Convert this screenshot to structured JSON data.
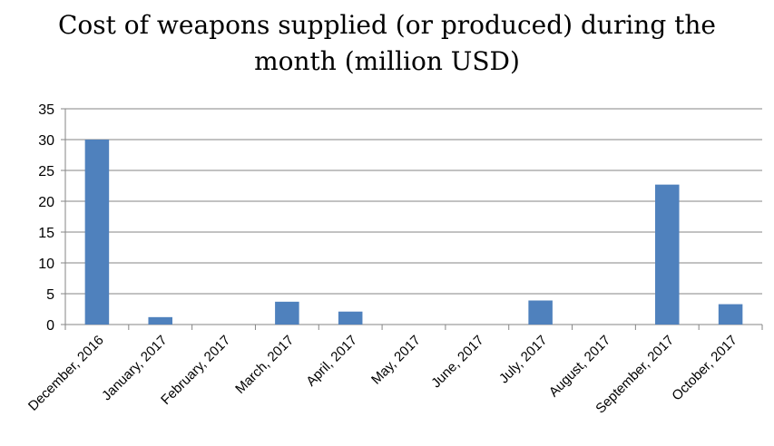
{
  "chart_data": {
    "type": "bar",
    "title_line1": "Cost of weapons supplied (or produced) during the",
    "title_line2": "month (million USD)",
    "categories": [
      "December, 2016",
      "January, 2017",
      "February, 2017",
      "March, 2017",
      "April, 2017",
      "May, 2017",
      "June, 2017",
      "July, 2017",
      "August, 2017",
      "September, 2017",
      "October, 2017"
    ],
    "values": [
      30,
      1.2,
      0,
      3.7,
      2.1,
      0,
      0,
      3.9,
      0,
      22.7,
      3.3
    ],
    "ylim": [
      0,
      35
    ],
    "yticks": [
      0,
      5,
      10,
      15,
      20,
      25,
      30,
      35
    ],
    "grid": true,
    "bar_color": "#4f81bd"
  }
}
